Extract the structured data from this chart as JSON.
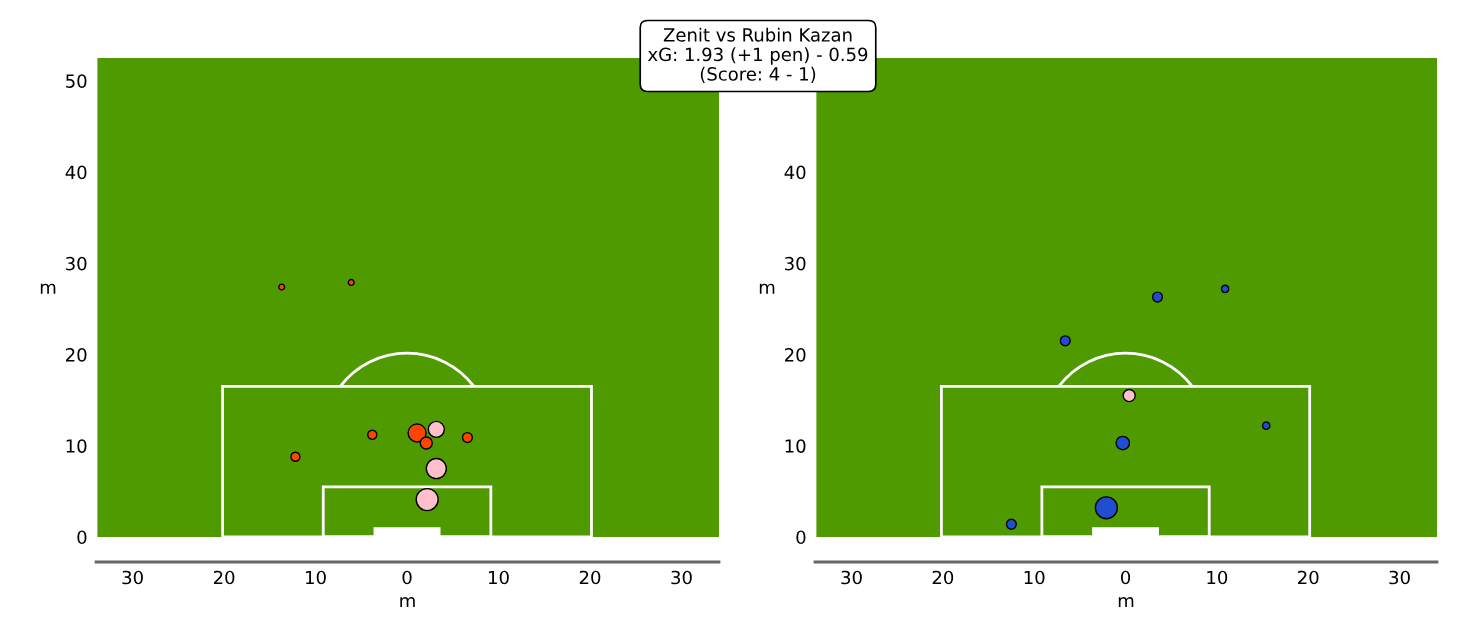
{
  "chart_data": [
    {
      "type": "bubble",
      "title": "Zenit vs Rubin Kazan\nxG: 1.93 (+1 pen) - 0.59\n(Score: 4 - 1)",
      "xlabel": "m",
      "ylabel": "m",
      "relative": false,
      "grid": false,
      "xlim": [
        -34,
        34.1
      ],
      "ylim": [
        0,
        52.5
      ],
      "xticks": [
        {
          "value": -30,
          "label": "30"
        },
        {
          "value": -20,
          "label": "20"
        },
        {
          "value": -10,
          "label": "10"
        },
        0,
        10,
        20,
        30
      ],
      "yticks": [
        0,
        10,
        20,
        30,
        40,
        50
      ],
      "series": [
        {
          "color": "#ff4500",
          "x": [
            -13.7,
            -6.1,
            -12.2,
            -3.8,
            1.1,
            2.1,
            6.6
          ],
          "values": [
            27.4,
            27.9,
            8.8,
            11.2,
            11.4,
            10.3,
            10.9
          ],
          "sizes": [
            0.07,
            0.07,
            0.17,
            0.17,
            0.67,
            0.3,
            0.2
          ]
        },
        {
          "color": "#ffc0cb",
          "x": [
            3.2,
            3.2,
            2.2
          ],
          "values": [
            11.8,
            7.5,
            4.1
          ],
          "sizes": [
            0.53,
            0.83,
            1
          ]
        }
      ]
    },
    {
      "type": "bubble",
      "xlabel": "m",
      "ylabel": "m",
      "grid": false,
      "xlim": [
        -34,
        34.1
      ],
      "ylim": [
        0,
        52.5
      ],
      "xticks": [
        {
          "value": -30,
          "label": "30"
        },
        {
          "value": -20,
          "label": "20"
        },
        {
          "value": -10,
          "label": "10"
        },
        0,
        10,
        20,
        30
      ],
      "yticks": [
        0,
        10,
        20,
        30,
        40
      ],
      "series": [
        {
          "color": "#1f4fd0",
          "x": [
            3.5,
            10.9,
            -6.6,
            -0.3,
            15.4,
            -2.1,
            -12.5
          ],
          "values": [
            26.3,
            27.2,
            21.5,
            10.3,
            12.2,
            3.2,
            1.4
          ],
          "sizes": [
            0.2,
            0.11,
            0.2,
            0.37,
            0.11,
            1,
            0.2
          ]
        },
        {
          "color": "#ffc0cb",
          "x": [
            0.4
          ],
          "values": [
            15.5
          ],
          "sizes": [
            0.3
          ]
        }
      ]
    }
  ]
}
